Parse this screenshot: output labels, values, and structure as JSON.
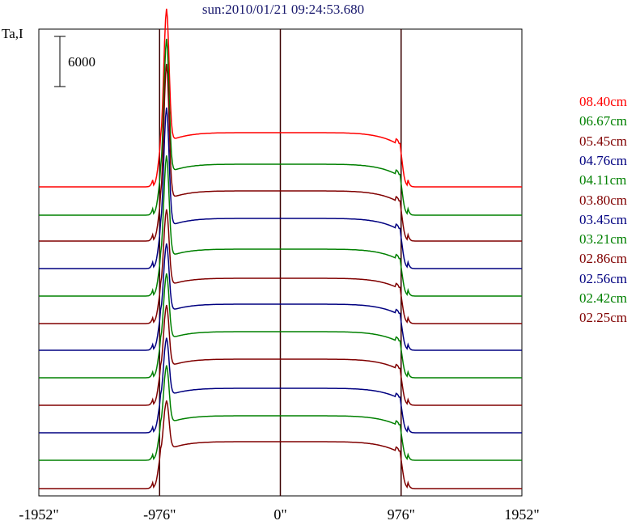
{
  "chart_data": {
    "type": "line",
    "title": "sun:2010/01/21 09:24:53.680",
    "ylabel": "Ta,I",
    "scale_bar_label": "6000",
    "x_ticks": [
      -1952,
      -976,
      0,
      976,
      1952
    ],
    "x_tick_labels": [
      "-1952\"",
      "-976\"",
      "0\"",
      "976\"",
      "1952\""
    ],
    "xlim": [
      -1952,
      1952
    ],
    "vertical_lines": [
      -976,
      0,
      976
    ],
    "series": [
      {
        "name": "08.40cm",
        "color": "#ff0000",
        "baseline_y": 231,
        "peak": 165,
        "disk": 67
      },
      {
        "name": "06.67cm",
        "color": "#008000",
        "baseline_y": 266,
        "peak": 166,
        "disk": 63
      },
      {
        "name": "05.45cm",
        "color": "#800000",
        "baseline_y": 298,
        "peak": 168,
        "disk": 62
      },
      {
        "name": "04.76cm",
        "color": "#000080",
        "baseline_y": 332,
        "peak": 148,
        "disk": 62
      },
      {
        "name": "04.11cm",
        "color": "#008000",
        "baseline_y": 366,
        "peak": 126,
        "disk": 58
      },
      {
        "name": "03.80cm",
        "color": "#800000",
        "baseline_y": 400,
        "peak": 95,
        "disk": 56
      },
      {
        "name": "03.45cm",
        "color": "#000080",
        "baseline_y": 433,
        "peak": 85,
        "disk": 57
      },
      {
        "name": "03.21cm",
        "color": "#008000",
        "baseline_y": 467,
        "peak": 82,
        "disk": 57
      },
      {
        "name": "02.86cm",
        "color": "#800000",
        "baseline_y": 501,
        "peak": 77,
        "disk": 57
      },
      {
        "name": "02.56cm",
        "color": "#000080",
        "baseline_y": 535,
        "peak": 72,
        "disk": 55
      },
      {
        "name": "02.42cm",
        "color": "#008000",
        "baseline_y": 569,
        "peak": 72,
        "disk": 55
      },
      {
        "name": "02.25cm",
        "color": "#800000",
        "baseline_y": 604,
        "peak": 61,
        "disk": 58
      }
    ]
  }
}
